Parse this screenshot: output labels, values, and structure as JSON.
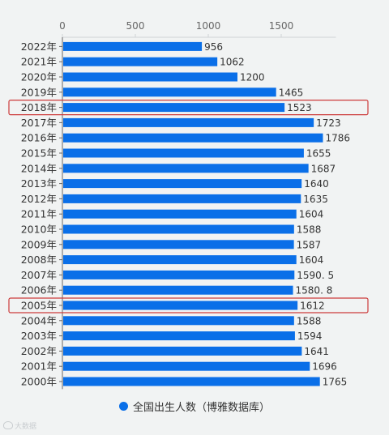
{
  "chart_data": {
    "type": "bar",
    "orientation": "horizontal",
    "categories": [
      "2022年",
      "2021年",
      "2020年",
      "2019年",
      "2018年",
      "2017年",
      "2016年",
      "2015年",
      "2014年",
      "2013年",
      "2012年",
      "2011年",
      "2010年",
      "2009年",
      "2008年",
      "2007年",
      "2006年",
      "2005年",
      "2004年",
      "2003年",
      "2002年",
      "2001年",
      "2000年"
    ],
    "series": [
      {
        "name": "全国出生人数（博雅数据库）",
        "values": [
          956,
          1062,
          1200,
          1465,
          1523,
          1723,
          1786,
          1655,
          1687,
          1640,
          1635,
          1604,
          1588,
          1587,
          1604,
          1590.5,
          1580.8,
          1612,
          1588,
          1594,
          1641,
          1696,
          1765
        ],
        "labels": [
          "956",
          "1062",
          "1200",
          "1465",
          "1523",
          "1723",
          "1786",
          "1655",
          "1687",
          "1640",
          "1635",
          "1604",
          "1588",
          "1587",
          "1604",
          "1590. 5",
          "1580. 8",
          "1612",
          "1588",
          "1594",
          "1641",
          "1696",
          "1765"
        ]
      }
    ],
    "xlim": [
      0,
      1875
    ],
    "xticks": [
      0,
      500,
      1000,
      1500
    ],
    "xtick_labels": [
      "0",
      "500",
      "1000",
      "1500"
    ],
    "highlighted_categories": [
      "2018年",
      "2005年"
    ],
    "legend_position": "bottom",
    "grid": false,
    "colors": {
      "bar": "#0a6fe8",
      "highlight": "#cc3b3b",
      "axis": "#999999",
      "text": "#333333"
    }
  },
  "watermark": {
    "text": "大数据"
  }
}
